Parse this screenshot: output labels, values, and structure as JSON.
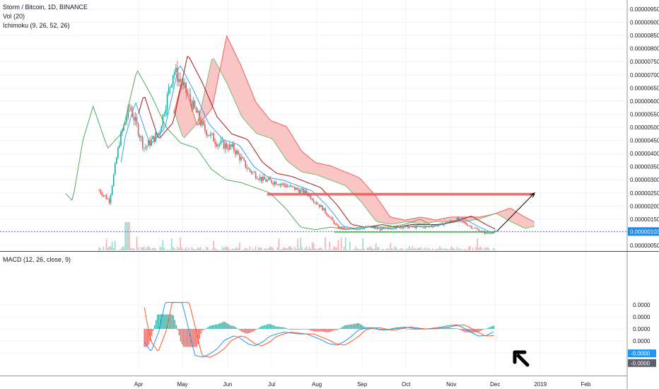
{
  "header": {
    "symbol_line": "Storm / Bitcoin, 1D, BINANCE",
    "vol_line": "Vol (20)",
    "ichimoku_line": "Ichimoku (9, 26, 52, 26)",
    "macd_line": "MACD (12, 26, close, 9)"
  },
  "colors": {
    "up": "#26a69a",
    "down": "#ef5350",
    "macd": "#2196f3",
    "signal": "#ff5722",
    "tenkan": "#2196f3",
    "kijun": "#990000",
    "lagging": "#43a047",
    "cloud_bear": "#f8b1b1",
    "cloud_bull": "#b7e4b9",
    "current_price": "#1e88e5"
  },
  "chart_data": [
    {
      "type": "candlestick",
      "title": "Storm / Bitcoin, 1D, BINANCE",
      "x_tick_labels": [
        "Apr",
        "May",
        "Jun",
        "Jul",
        "Aug",
        "Sep",
        "Oct",
        "Nov",
        "Dec",
        "2019",
        "Feb"
      ],
      "x_tick_dates": [
        "2018-04-01",
        "2018-05-01",
        "2018-06-01",
        "2018-07-01",
        "2018-08-01",
        "2018-09-01",
        "2018-10-01",
        "2018-11-01",
        "2018-12-01",
        "2019-01-01",
        "2019-02-01"
      ],
      "y_tick_labels": [
        "0.00000950",
        "0.00000900",
        "0.00000850",
        "0.00000800",
        "0.00000750",
        "0.00000700",
        "0.00000650",
        "0.00000600",
        "0.00000550",
        "0.00000500",
        "0.00000450",
        "0.00000400",
        "0.00000350",
        "0.00000300",
        "0.00000250",
        "0.00000200",
        "0.00000150",
        "0.00000100",
        "0.00000050"
      ],
      "y_tick_values": [
        9.5e-06,
        9e-06,
        8.5e-06,
        8e-06,
        7.5e-06,
        7e-06,
        6.5e-06,
        6e-06,
        5.5e-06,
        5e-06,
        4.5e-06,
        4e-06,
        3.5e-06,
        3e-06,
        2.5e-06,
        2e-06,
        1.5e-06,
        1e-06,
        5e-07
      ],
      "ylim": [
        3.8e-07,
        9.73e-06
      ],
      "current_price_label": "0.00000103",
      "current_price": 1.03e-06,
      "close_by_month": [
        {
          "date": "2018-03-05",
          "close": 2.6e-06
        },
        {
          "date": "2018-03-12",
          "close": 2.2e-06
        },
        {
          "date": "2018-03-19",
          "close": 4.5e-06
        },
        {
          "date": "2018-03-26",
          "close": 5.8e-06
        },
        {
          "date": "2018-04-05",
          "close": 4.2e-06
        },
        {
          "date": "2018-04-15",
          "close": 4.8e-06
        },
        {
          "date": "2018-04-25",
          "close": 7.2e-06
        },
        {
          "date": "2018-05-05",
          "close": 6.2e-06
        },
        {
          "date": "2018-05-15",
          "close": 5e-06
        },
        {
          "date": "2018-05-25",
          "close": 4.4e-06
        },
        {
          "date": "2018-06-05",
          "close": 4.2e-06
        },
        {
          "date": "2018-06-15",
          "close": 3.4e-06
        },
        {
          "date": "2018-06-25",
          "close": 3e-06
        },
        {
          "date": "2018-07-05",
          "close": 2.9e-06
        },
        {
          "date": "2018-07-15",
          "close": 2.7e-06
        },
        {
          "date": "2018-07-25",
          "close": 2.5e-06
        },
        {
          "date": "2018-08-05",
          "close": 1.9e-06
        },
        {
          "date": "2018-08-15",
          "close": 1.2e-06
        },
        {
          "date": "2018-08-25",
          "close": 1.1e-06
        },
        {
          "date": "2018-09-05",
          "close": 1.2e-06
        },
        {
          "date": "2018-09-15",
          "close": 1.1e-06
        },
        {
          "date": "2018-09-25",
          "close": 1.2e-06
        },
        {
          "date": "2018-10-05",
          "close": 1.2e-06
        },
        {
          "date": "2018-10-15",
          "close": 1.2e-06
        },
        {
          "date": "2018-10-25",
          "close": 1.3e-06
        },
        {
          "date": "2018-11-05",
          "close": 1.5e-06
        },
        {
          "date": "2018-11-15",
          "close": 1.2e-06
        },
        {
          "date": "2018-11-25",
          "close": 9.5e-07
        },
        {
          "date": "2018-12-01",
          "close": 1.03e-06
        }
      ],
      "horizontal_zones": [
        {
          "color": "#ef5350",
          "from_date": "2018-06-28",
          "to_date": "2018-12-28",
          "y_low": 2.4e-06,
          "y_high": 2.5e-06
        },
        {
          "color": "#66bb6a",
          "from_date": "2018-08-13",
          "to_date": "2018-12-01",
          "y_low": 9.8e-07,
          "y_high": 1.04e-06
        }
      ],
      "arrow": {
        "from_date": "2018-12-02",
        "from_price": 1.03e-06,
        "to_date": "2018-12-28",
        "to_price": 2.5e-06,
        "color": "#000000"
      }
    },
    {
      "type": "line",
      "title": "MACD (12, 26, close, 9)",
      "y_tick_labels": [
        "0.0000",
        "0.0000",
        "0.0000",
        "0.0000",
        "-0.0000",
        "-0.0000"
      ],
      "y_tick_values": [
        2.0,
        1.0,
        0.0,
        -1.0,
        -2.0,
        -3.0
      ],
      "current_labels": [
        "-0.0000",
        "-0.0000"
      ],
      "current_values": [
        -2.3,
        -2.4
      ]
    }
  ]
}
